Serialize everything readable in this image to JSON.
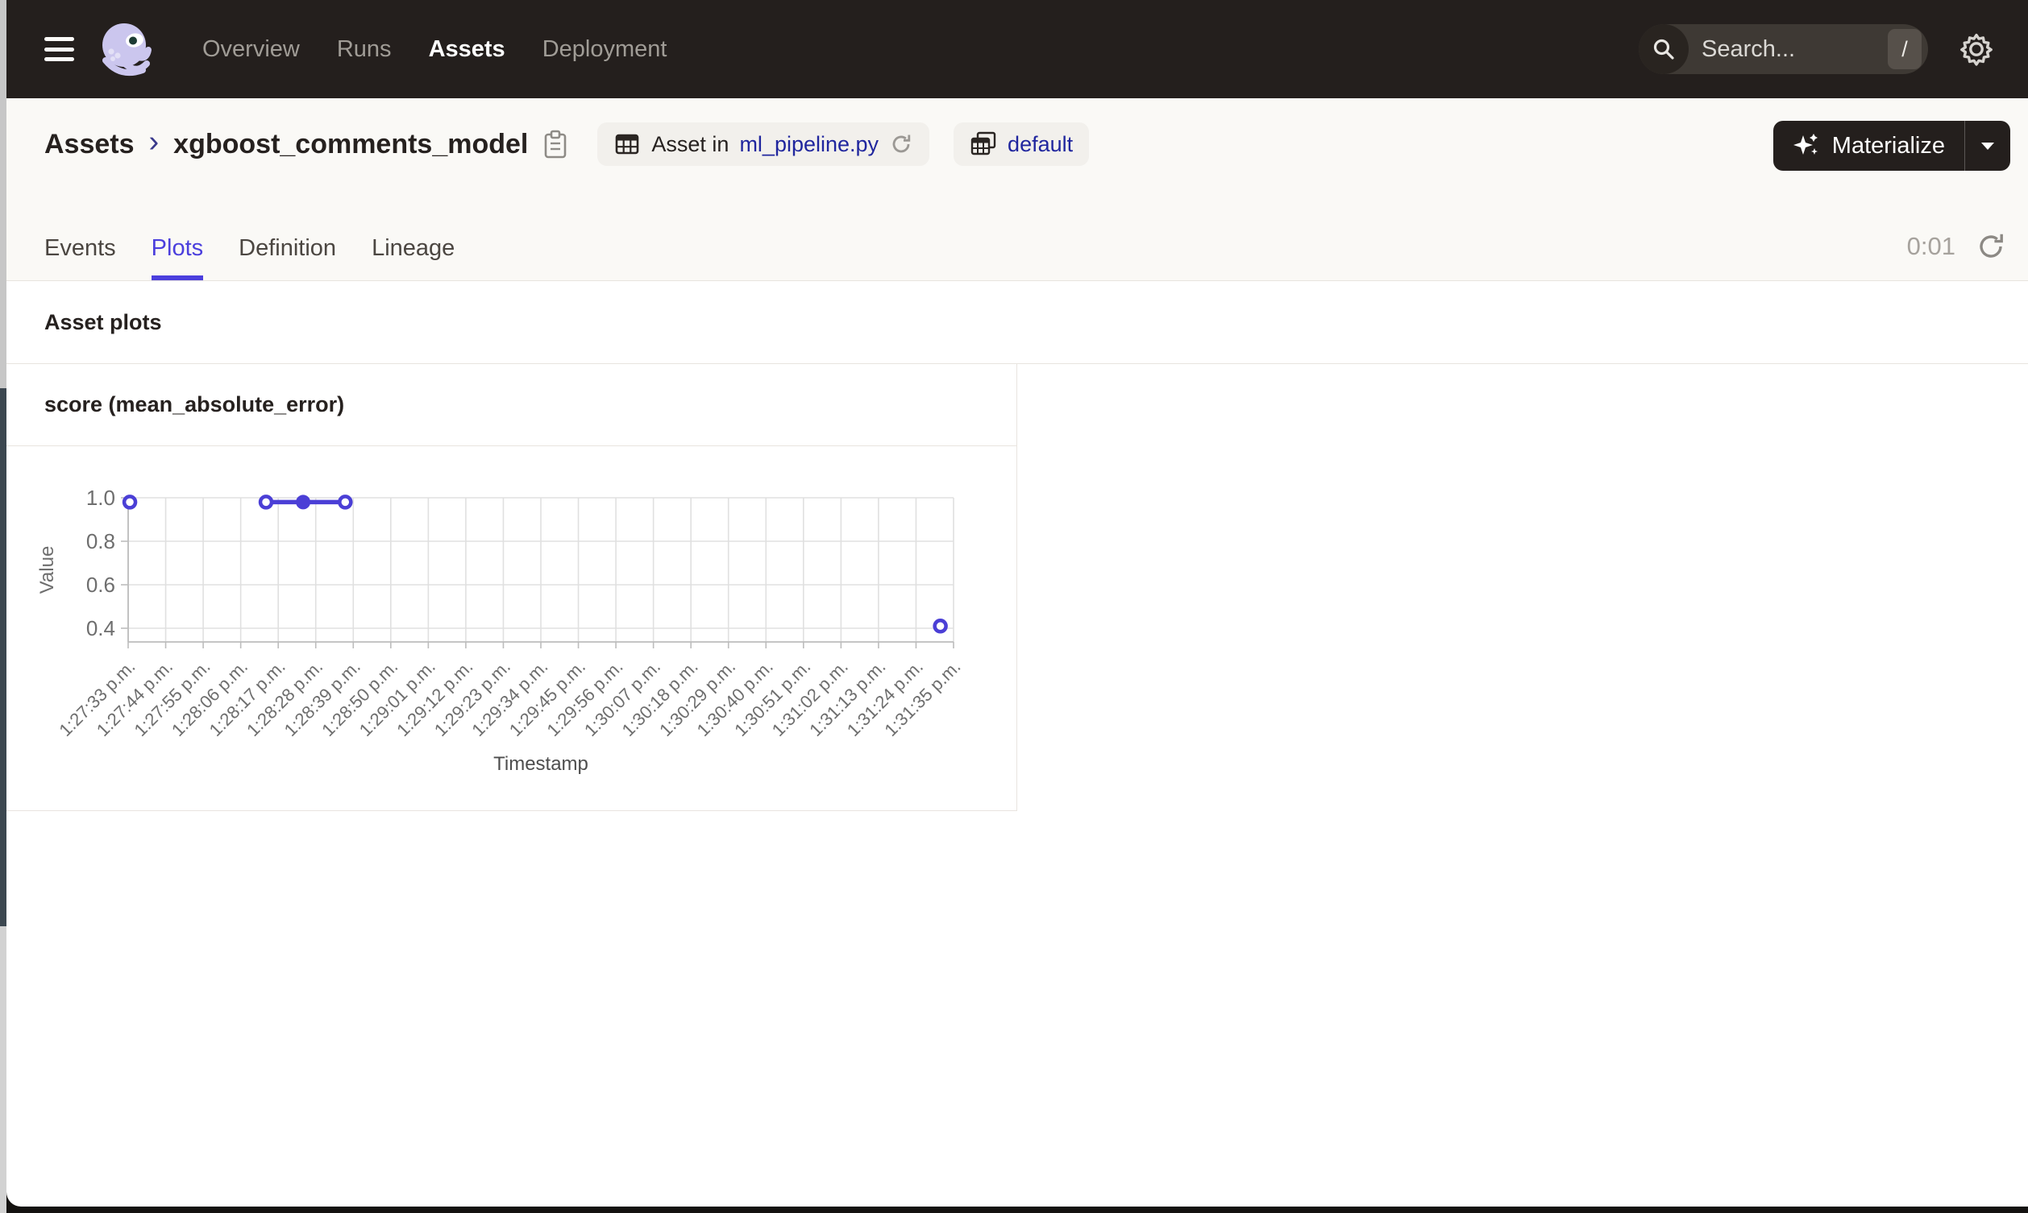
{
  "nav": {
    "items": [
      {
        "label": "Overview",
        "active": false
      },
      {
        "label": "Runs",
        "active": false
      },
      {
        "label": "Assets",
        "active": true
      },
      {
        "label": "Deployment",
        "active": false
      }
    ],
    "search": {
      "placeholder": "Search...",
      "shortcut": "/"
    }
  },
  "breadcrumb": {
    "root": "Assets",
    "separator": "›",
    "current": "xgboost_comments_model"
  },
  "badges": {
    "asset_in": {
      "prefix": "Asset in",
      "link": "ml_pipeline.py"
    },
    "repo": {
      "label": "default"
    }
  },
  "actions": {
    "materialize": "Materialize",
    "caret": "▾"
  },
  "tabs": {
    "items": [
      {
        "label": "Events",
        "active": false
      },
      {
        "label": "Plots",
        "active": true
      },
      {
        "label": "Definition",
        "active": false
      },
      {
        "label": "Lineage",
        "active": false
      }
    ],
    "refresh_timer": "0:01"
  },
  "section": {
    "title": "Asset plots"
  },
  "chart_data": {
    "type": "line",
    "title": "score (mean_absolute_error)",
    "xlabel": "Timestamp",
    "ylabel": "Value",
    "ylim": [
      0.34,
      1.0
    ],
    "y_ticks": [
      1.0,
      0.8,
      0.6,
      0.4
    ],
    "grid": true,
    "line_color": "#4b3fd6",
    "x_tick_labels": [
      "1:27:33 p.m.",
      "1:27:44 p.m.",
      "1:27:55 p.m.",
      "1:28:06 p.m.",
      "1:28:17 p.m.",
      "1:28:28 p.m.",
      "1:28:39 p.m.",
      "1:28:50 p.m.",
      "1:29:01 p.m.",
      "1:29:12 p.m.",
      "1:29:23 p.m.",
      "1:29:34 p.m.",
      "1:29:45 p.m.",
      "1:29:56 p.m.",
      "1:30:07 p.m.",
      "1:30:18 p.m.",
      "1:30:29 p.m.",
      "1:30:40 p.m.",
      "1:30:51 p.m.",
      "1:31:02 p.m.",
      "1:31:13 p.m.",
      "1:31:24 p.m.",
      "1:31:35 p.m."
    ],
    "points": [
      {
        "x_frac": 0.002,
        "value": 0.98,
        "marker": "open",
        "time_approx": "1:27:33 p.m."
      },
      {
        "x_frac": 0.167,
        "value": 0.98,
        "marker": "open",
        "time_approx": "1:28:14 p.m."
      },
      {
        "x_frac": 0.212,
        "value": 0.98,
        "marker": "filled",
        "time_approx": "1:28:25 p.m."
      },
      {
        "x_frac": 0.263,
        "value": 0.98,
        "marker": "open",
        "time_approx": "1:28:37 p.m."
      },
      {
        "x_frac": 0.984,
        "value": 0.41,
        "marker": "open",
        "time_approx": "1:31:31 p.m."
      }
    ],
    "connected_indices": [
      1,
      2,
      3
    ]
  },
  "colors": {
    "nav_bg": "#241f1d",
    "page_bg": "#faf9f6",
    "border": "#e8e4df",
    "accent_tab": "#4b3fdd",
    "link_blue": "#20269e",
    "chart_line": "#4b3fd6",
    "grid_line": "#e0e0e0",
    "axis_line": "#bdbdbd",
    "chart_text": "#6e6e6e"
  }
}
